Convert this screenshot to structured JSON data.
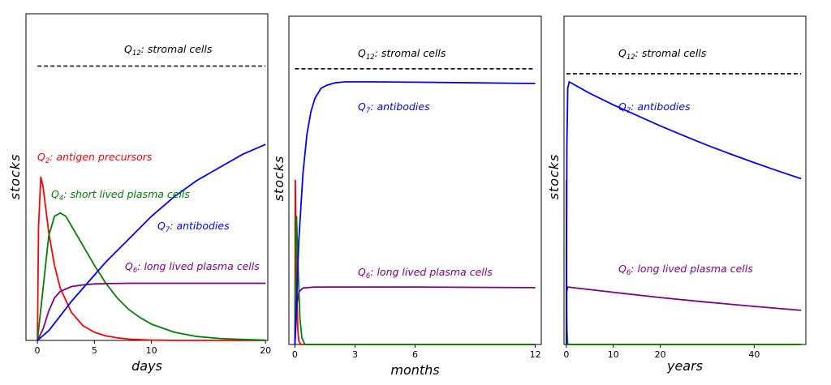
{
  "chart_data": [
    {
      "type": "line",
      "xlabel": "days",
      "ylabel": "stocks",
      "xlim": [
        -1,
        20.2
      ],
      "ylim": [
        0,
        1
      ],
      "xticks": [
        0,
        5,
        10,
        20
      ],
      "series": [
        {
          "id": "Q12",
          "sym": "Q",
          "sub": "12",
          "name": ": stromal cells",
          "color": "#000000",
          "dashed": true,
          "x": [
            0,
            20
          ],
          "y": [
            0.84,
            0.84
          ]
        },
        {
          "id": "Q2",
          "sym": "Q",
          "sub": "2",
          "name": ": antigen precursors",
          "color": "#ff0000",
          "x": [
            0,
            0.1,
            0.3,
            0.5,
            1,
            1.5,
            2,
            3,
            4,
            5,
            6,
            7,
            8,
            10,
            12,
            15,
            20
          ],
          "y": [
            0,
            0.35,
            0.5,
            0.47,
            0.33,
            0.23,
            0.16,
            0.085,
            0.045,
            0.025,
            0.014,
            0.008,
            0.004,
            0.001,
            0,
            0,
            0
          ]
        },
        {
          "id": "Q4",
          "sym": "Q",
          "sub": "4",
          "name": ": short lived plasma cells",
          "color": "#008000",
          "x": [
            0,
            0.5,
            1,
            1.5,
            2,
            2.5,
            3,
            4,
            5,
            6,
            7,
            8,
            9,
            10,
            12,
            14,
            16,
            18,
            20
          ],
          "y": [
            0,
            0.16,
            0.32,
            0.38,
            0.39,
            0.38,
            0.35,
            0.29,
            0.23,
            0.175,
            0.13,
            0.095,
            0.07,
            0.05,
            0.025,
            0.012,
            0.006,
            0.003,
            0.001
          ]
        },
        {
          "id": "Q6",
          "sym": "Q",
          "sub": "6",
          "name": ": long lived plasma cells",
          "color": "#800080",
          "x": [
            0,
            0.5,
            1,
            1.5,
            2,
            3,
            4,
            5,
            6,
            8,
            10,
            15,
            20
          ],
          "y": [
            0,
            0.035,
            0.09,
            0.13,
            0.15,
            0.165,
            0.17,
            0.173,
            0.174,
            0.175,
            0.175,
            0.175,
            0.175
          ]
        },
        {
          "id": "Q7",
          "sym": "Q",
          "sub": "7",
          "name": ": antibodies",
          "color": "#0000ff",
          "x": [
            0,
            1,
            2,
            3,
            4,
            5,
            6,
            8,
            10,
            12,
            14,
            16,
            18,
            20
          ],
          "y": [
            0,
            0.03,
            0.075,
            0.12,
            0.16,
            0.2,
            0.24,
            0.31,
            0.38,
            0.44,
            0.49,
            0.53,
            0.57,
            0.6
          ]
        }
      ]
    },
    {
      "type": "line",
      "xlabel": "months",
      "ylabel": "stocks",
      "xlim": [
        -0.3,
        12.3
      ],
      "ylim": [
        0,
        1
      ],
      "xticks": [
        0,
        3,
        6,
        12
      ],
      "series": [
        {
          "id": "Q12",
          "sym": "Q",
          "sub": "12",
          "name": ": stromal cells",
          "color": "#000000",
          "dashed": true,
          "x": [
            0,
            12
          ],
          "y": [
            0.84,
            0.84
          ]
        },
        {
          "id": "Q2",
          "sym": "Q",
          "sub": "2",
          "name": "",
          "color": "#ff0000",
          "x": [
            0,
            0.02,
            0.05,
            0.1,
            0.15,
            0.2,
            0.3,
            12
          ],
          "y": [
            0,
            0.5,
            0.35,
            0.15,
            0.04,
            0.01,
            0,
            0
          ]
        },
        {
          "id": "Q4",
          "sym": "Q",
          "sub": "4",
          "name": "",
          "color": "#008000",
          "x": [
            0,
            0.04,
            0.08,
            0.15,
            0.25,
            0.35,
            0.5,
            12
          ],
          "y": [
            0,
            0.3,
            0.39,
            0.25,
            0.08,
            0.02,
            0,
            0
          ]
        },
        {
          "id": "Q6",
          "sym": "Q",
          "sub": "6",
          "name": ": long lived plasma cells",
          "color": "#800080",
          "x": [
            0,
            0.1,
            0.2,
            0.4,
            1,
            3,
            6,
            9,
            12
          ],
          "y": [
            0,
            0.12,
            0.16,
            0.172,
            0.175,
            0.175,
            0.175,
            0.174,
            0.173
          ]
        },
        {
          "id": "Q7",
          "sym": "Q",
          "sub": "7",
          "name": ": antibodies",
          "color": "#0000ff",
          "x": [
            0,
            0.2,
            0.4,
            0.6,
            0.8,
            1,
            1.3,
            1.6,
            2,
            2.5,
            3,
            4,
            6,
            9,
            12
          ],
          "y": [
            0,
            0.32,
            0.52,
            0.64,
            0.71,
            0.75,
            0.78,
            0.79,
            0.797,
            0.8,
            0.8,
            0.8,
            0.799,
            0.797,
            0.795
          ]
        }
      ]
    },
    {
      "type": "line",
      "xlabel": "years",
      "ylabel": "stocks",
      "xlim": [
        -0.5,
        51
      ],
      "ylim": [
        0,
        1
      ],
      "xticks": [
        0,
        10,
        20,
        40
      ],
      "series": [
        {
          "id": "Q12",
          "sym": "Q",
          "sub": "12",
          "name": ": stromal cells",
          "color": "#000000",
          "dashed": true,
          "x": [
            0,
            50
          ],
          "y": [
            0.825,
            0.825
          ]
        },
        {
          "id": "Q2",
          "sym": "Q",
          "sub": "2",
          "name": "",
          "color": "#ff0000",
          "x": [
            0,
            0.01,
            0.05,
            0.2,
            50
          ],
          "y": [
            0,
            0.5,
            0.1,
            0,
            0
          ]
        },
        {
          "id": "Q4",
          "sym": "Q",
          "sub": "4",
          "name": "",
          "color": "#008000",
          "x": [
            0,
            0.01,
            0.08,
            0.3,
            50
          ],
          "y": [
            0,
            0.38,
            0.05,
            0,
            0
          ]
        },
        {
          "id": "Q6",
          "sym": "Q",
          "sub": "6",
          "name": ": long lived plasma cells",
          "color": "#800080",
          "x": [
            0,
            0.05,
            0.3,
            10,
            20,
            30,
            40,
            50
          ],
          "y": [
            0,
            0.16,
            0.175,
            0.159,
            0.143,
            0.129,
            0.116,
            0.104
          ]
        },
        {
          "id": "Q7",
          "sym": "Q",
          "sub": "7",
          "name": ": antibodies",
          "color": "#0000ff",
          "x": [
            0,
            0.1,
            0.3,
            0.6,
            5,
            10,
            15,
            20,
            25,
            30,
            35,
            40,
            45,
            50
          ],
          "y": [
            0,
            0.6,
            0.78,
            0.8,
            0.765,
            0.73,
            0.698,
            0.666,
            0.636,
            0.607,
            0.58,
            0.554,
            0.529,
            0.505
          ]
        }
      ]
    }
  ]
}
